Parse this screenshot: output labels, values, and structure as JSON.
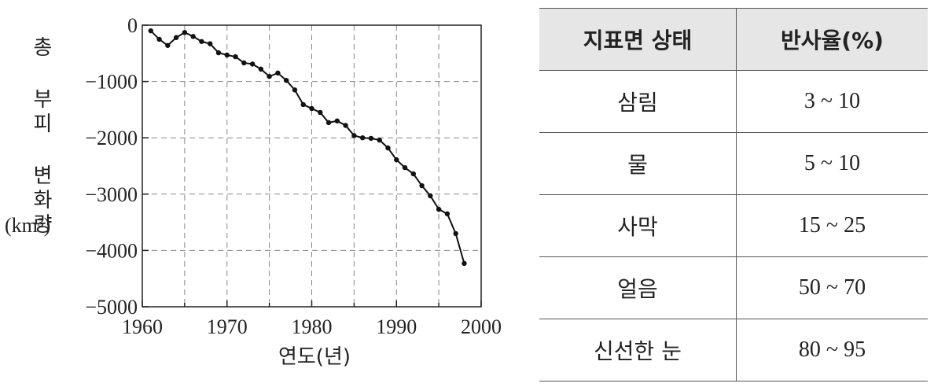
{
  "chart_data": {
    "type": "line",
    "x_label": "연도(년)",
    "y_label": "총 부피 변화량",
    "y_unit": "(km³)",
    "x": [
      1961,
      1962,
      1963,
      1964,
      1965,
      1966,
      1967,
      1968,
      1969,
      1970,
      1971,
      1972,
      1973,
      1974,
      1975,
      1976,
      1977,
      1978,
      1979,
      1980,
      1981,
      1982,
      1983,
      1984,
      1985,
      1986,
      1987,
      1988,
      1989,
      1990,
      1991,
      1992,
      1993,
      1994,
      1995,
      1996,
      1997,
      1998
    ],
    "series": [
      {
        "color": "#111111",
        "values": [
          -100,
          -250,
          -360,
          -220,
          -130,
          -200,
          -290,
          -330,
          -490,
          -530,
          -560,
          -670,
          -690,
          -780,
          -910,
          -850,
          -980,
          -1150,
          -1410,
          -1480,
          -1550,
          -1730,
          -1700,
          -1780,
          -1960,
          -2000,
          -2010,
          -2040,
          -2180,
          -2390,
          -2530,
          -2640,
          -2850,
          -3030,
          -3270,
          -3350,
          -3700,
          -4230
        ]
      }
    ],
    "xlim": [
      1960,
      2000
    ],
    "ylim": [
      -5000,
      0
    ],
    "xticks": [
      1960,
      1970,
      1980,
      1990,
      2000
    ],
    "xminor_ticks": [
      1965,
      1975,
      1985,
      1995
    ],
    "yticks": [
      0,
      {
        "value": -1000,
        "label": "−1000"
      },
      {
        "value": -2000,
        "label": "−2000"
      },
      {
        "value": -3000,
        "label": "−3000"
      },
      {
        "value": -4000,
        "label": "−4000"
      },
      {
        "value": -5000,
        "label": "−5000"
      }
    ],
    "grid": true
  },
  "table": {
    "header": [
      "지표면 상태",
      "반사율(%)"
    ],
    "rows": [
      [
        "삼림",
        "3 ~ 10"
      ],
      [
        "물",
        "5 ~ 10"
      ],
      [
        "사막",
        "15 ~ 25"
      ],
      [
        "얼음",
        "50 ~ 70"
      ],
      [
        "신선한 눈",
        "80 ~ 95"
      ]
    ]
  }
}
